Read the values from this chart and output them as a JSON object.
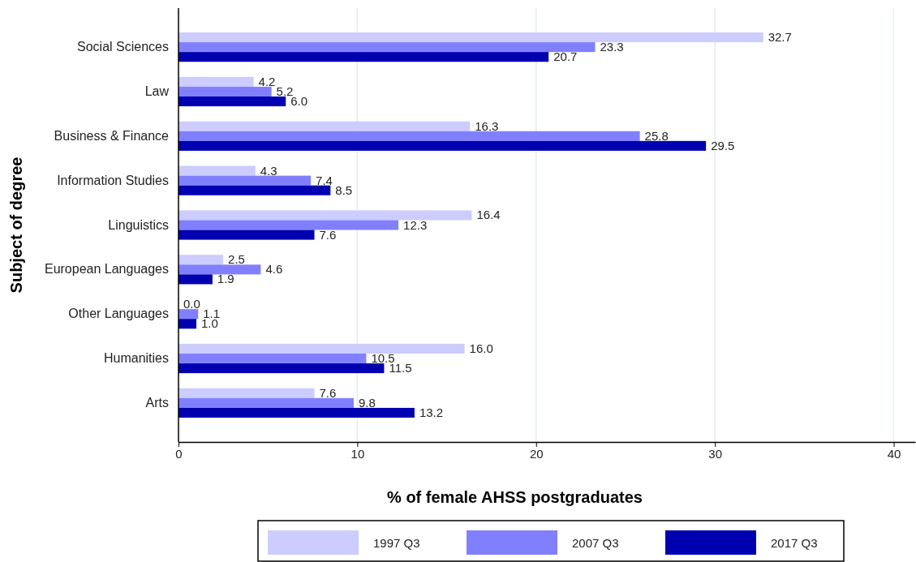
{
  "chart_data": {
    "type": "bar",
    "orientation": "horizontal",
    "xlabel": "% of female AHSS postgraduates",
    "ylabel": "Subject of degree",
    "categories": [
      "Social Sciences",
      "Law",
      "Business & Finance",
      "Information Studies",
      "Linguistics",
      "European Languages",
      "Other Languages",
      "Humanities",
      "Arts"
    ],
    "series": [
      {
        "name": "1997 Q3",
        "color": "#ccccff",
        "values": [
          32.7,
          4.2,
          16.3,
          4.3,
          16.4,
          2.5,
          0.0,
          16.0,
          7.6
        ],
        "value_labels": [
          "32.7",
          "4.2",
          "16.3",
          "4.3",
          "16.4",
          "2.5",
          "0.0",
          "16.0",
          "7.6"
        ]
      },
      {
        "name": "2007 Q3",
        "color": "#8080ff",
        "values": [
          23.3,
          5.2,
          25.8,
          7.4,
          12.3,
          4.6,
          1.1,
          10.5,
          9.8
        ],
        "value_labels": [
          "23.3",
          "5.2",
          "25.8",
          "7.4",
          "12.3",
          "4.6",
          "1.1",
          "10.5",
          "9.8"
        ]
      },
      {
        "name": "2017 Q3",
        "color": "#0000b0",
        "values": [
          20.7,
          6.0,
          29.5,
          8.5,
          7.6,
          1.9,
          1.0,
          11.5,
          13.2
        ],
        "value_labels": [
          "20.7",
          "6.0",
          "29.5",
          "8.5",
          "7.6",
          "1.9",
          "1.0",
          "11.5",
          "13.2"
        ]
      }
    ],
    "xlim": [
      0,
      41.2
    ],
    "xticks": [
      0,
      10,
      20,
      30,
      40
    ],
    "grid": "x",
    "legend": "bottom"
  }
}
